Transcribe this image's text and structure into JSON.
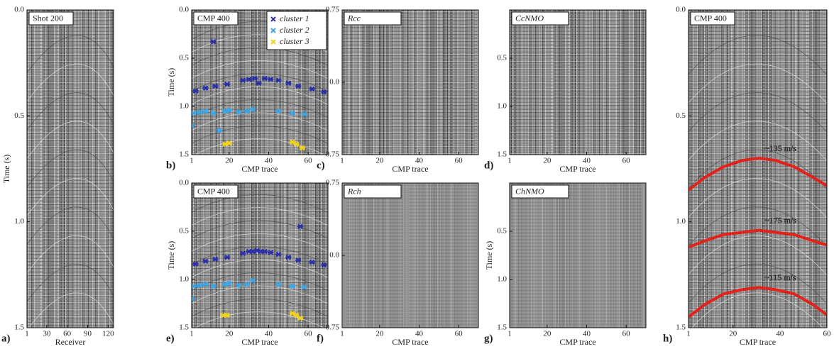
{
  "chart_data": [
    {
      "type": "seismic",
      "panel": "a)",
      "label": "Shot 200",
      "xlabel": "Receiver",
      "ylabel": "Time (s)",
      "xlim": [
        1,
        128
      ],
      "xticks": [
        1,
        30,
        60,
        90,
        120
      ],
      "ylim": [
        0,
        1.5
      ],
      "y_inverted": true,
      "yticks": [
        {
          "value": 0,
          "label": "0.0"
        },
        0.5,
        {
          "value": 1,
          "label": "1.0"
        },
        1.5
      ]
    },
    {
      "type": "scatter",
      "panel": "b)",
      "label": "CMP 400",
      "xlabel": "CMP trace",
      "ylabel": "Time (s)",
      "xlim": [
        1,
        70
      ],
      "xticks": [
        1,
        20,
        40,
        60
      ],
      "ylim": [
        0,
        1.5
      ],
      "y_inverted": true,
      "yticks": [
        {
          "value": 0,
          "label": "0.0"
        },
        0.5,
        {
          "value": 1,
          "label": "1.0"
        },
        1.5
      ],
      "legend": "top-right",
      "series": [
        {
          "name": "cluster 1",
          "color": "#2b2fa8",
          "x": [
            12,
            3,
            8,
            13,
            19,
            27,
            30,
            33,
            35,
            38,
            41,
            45,
            50,
            55,
            62,
            68
          ],
          "values": [
            0.33,
            0.84,
            0.81,
            0.79,
            0.77,
            0.73,
            0.72,
            0.71,
            0.76,
            0.71,
            0.72,
            0.73,
            0.76,
            0.79,
            0.82,
            0.85
          ]
        },
        {
          "name": "cluster 2",
          "color": "#3aa6e6",
          "x": [
            2,
            5,
            8,
            12,
            18,
            20,
            25,
            29,
            32,
            45,
            52,
            58,
            1,
            15
          ],
          "values": [
            1.07,
            1.06,
            1.05,
            1.07,
            1.05,
            1.04,
            1.06,
            1.05,
            1.03,
            1.05,
            1.07,
            1.08,
            1.2,
            1.25
          ]
        },
        {
          "name": "cluster 3",
          "color": "#f2d21b",
          "x": [
            18,
            20,
            52,
            54,
            57
          ],
          "values": [
            1.39,
            1.38,
            1.37,
            1.39,
            1.43
          ]
        }
      ]
    },
    {
      "type": "seismic",
      "panel": "c)",
      "label": "Rcc",
      "label_italic": true,
      "xlabel": "CMP trace",
      "xlim": [
        1,
        70
      ],
      "xticks": [
        1,
        20,
        40,
        60
      ],
      "ylim": [
        -0.75,
        0.75
      ],
      "y_inverted": true,
      "yticks": [
        -0.75,
        {
          "value": 0,
          "label": "0.0"
        },
        0.75
      ]
    },
    {
      "type": "seismic",
      "panel": "d)",
      "label": "CcNMO",
      "label_italic": true,
      "xlabel": "CMP trace",
      "xlim": [
        1,
        70
      ],
      "xticks": [
        1,
        20,
        40,
        60
      ],
      "ylim": [
        0,
        1.5
      ],
      "y_inverted": true,
      "yticks": [
        0.5,
        {
          "value": 1,
          "label": "1.0"
        },
        1.5
      ]
    },
    {
      "type": "scatter",
      "panel": "e)",
      "label": "CMP 400",
      "xlabel": "CMP trace",
      "ylabel": "Time (s)",
      "xlim": [
        1,
        70
      ],
      "xticks": [
        1,
        20,
        40,
        60
      ],
      "ylim": [
        0,
        1.5
      ],
      "y_inverted": true,
      "yticks": [
        {
          "value": 0,
          "label": "0.0"
        },
        0.5,
        {
          "value": 1,
          "label": "1.0"
        },
        1.5
      ],
      "series": [
        {
          "color": "#2b2fa8",
          "x": [
            56,
            3,
            8,
            13,
            19,
            27,
            30,
            32,
            34,
            36,
            38,
            41,
            45,
            50,
            55,
            62,
            68
          ],
          "values": [
            0.45,
            0.84,
            0.81,
            0.79,
            0.77,
            0.73,
            0.71,
            0.71,
            0.7,
            0.71,
            0.71,
            0.72,
            0.74,
            0.77,
            0.8,
            0.82,
            0.85
          ]
        },
        {
          "color": "#3aa6e6",
          "x": [
            2,
            5,
            8,
            12,
            18,
            20,
            25,
            29,
            32,
            45,
            52,
            58,
            1
          ],
          "values": [
            1.07,
            1.06,
            1.05,
            1.07,
            1.05,
            1.04,
            1.06,
            1.05,
            1.01,
            1.05,
            1.07,
            1.08,
            1.2
          ]
        },
        {
          "color": "#f2d21b",
          "x": [
            17,
            19,
            52,
            54,
            56
          ],
          "values": [
            1.37,
            1.37,
            1.35,
            1.37,
            1.4
          ]
        }
      ]
    },
    {
      "type": "seismic",
      "panel": "f)",
      "label": "Rch",
      "label_italic": true,
      "xlabel": "CMP trace",
      "xlim": [
        1,
        70
      ],
      "xticks": [
        1,
        20,
        40,
        60
      ],
      "ylim": [
        -0.75,
        0.75
      ],
      "y_inverted": true,
      "yticks": [
        -0.75,
        {
          "value": 0,
          "label": "0.0"
        },
        0.75
      ]
    },
    {
      "type": "seismic",
      "panel": "g)",
      "label": "ChNMO",
      "label_italic": true,
      "xlabel": "CMP trace",
      "ylabel": "Time (s)",
      "xlim": [
        1,
        70
      ],
      "xticks": [
        1,
        20,
        40,
        60
      ],
      "ylim": [
        0,
        1.5
      ],
      "y_inverted": true,
      "yticks": [
        0.5,
        {
          "value": 1,
          "label": "1.0"
        },
        1.5
      ]
    },
    {
      "type": "line",
      "panel": "h)",
      "label": "CMP 400",
      "xlabel": "CMP trace",
      "xlim": [
        1,
        60
      ],
      "xticks": [
        1,
        20,
        40,
        60
      ],
      "ylim": [
        0,
        1.5
      ],
      "y_inverted": true,
      "yticks": [
        {
          "value": 0,
          "label": "0.0"
        },
        0.5,
        {
          "value": 1,
          "label": "1.0"
        },
        1.5
      ],
      "curve_color": "#e3221c",
      "curves": [
        {
          "label": "~135 m/s",
          "x": [
            1,
            8,
            16,
            24,
            31,
            38,
            46,
            54,
            60
          ],
          "values": [
            0.85,
            0.79,
            0.74,
            0.71,
            0.7,
            0.71,
            0.74,
            0.79,
            0.83
          ]
        },
        {
          "label": "~175 m/s",
          "x": [
            1,
            8,
            16,
            24,
            31,
            38,
            46,
            54,
            60
          ],
          "values": [
            1.12,
            1.09,
            1.06,
            1.05,
            1.04,
            1.05,
            1.06,
            1.09,
            1.11
          ]
        },
        {
          "label": "~115 m/s",
          "x": [
            1,
            8,
            16,
            24,
            31,
            38,
            46,
            54,
            60
          ],
          "values": [
            1.45,
            1.39,
            1.34,
            1.32,
            1.31,
            1.32,
            1.34,
            1.39,
            1.44
          ]
        }
      ]
    }
  ]
}
